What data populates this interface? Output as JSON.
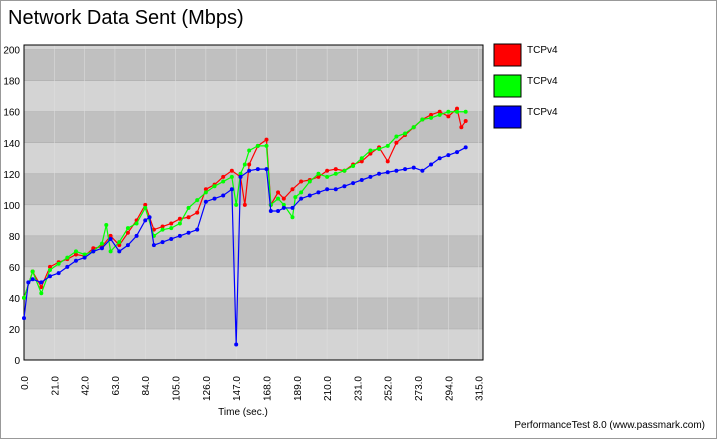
{
  "chart_data": {
    "type": "line",
    "title": "Network Data Sent (Mbps)",
    "x_label": "Time (sec.)",
    "footer": "PerformanceTest 8.0 (www.passmark.com)",
    "xlim": [
      0,
      318
    ],
    "ylim": [
      0,
      203
    ],
    "grid": true,
    "legend": "right",
    "xticks": [
      {
        "value": 0,
        "label": "0.0"
      },
      {
        "value": 21,
        "label": "21.0"
      },
      {
        "value": 42,
        "label": "42.0"
      },
      {
        "value": 63,
        "label": "63.0"
      },
      {
        "value": 84,
        "label": "84.0"
      },
      {
        "value": 105,
        "label": "105.0"
      },
      {
        "value": 126,
        "label": "126.0"
      },
      {
        "value": 147,
        "label": "147.0"
      },
      {
        "value": 168,
        "label": "168.0"
      },
      {
        "value": 189,
        "label": "189.0"
      },
      {
        "value": 210,
        "label": "210.0"
      },
      {
        "value": 231,
        "label": "231.0"
      },
      {
        "value": 252,
        "label": "252.0"
      },
      {
        "value": 273,
        "label": "273.0"
      },
      {
        "value": 294,
        "label": "294.0"
      },
      {
        "value": 315,
        "label": "315.0"
      }
    ],
    "yticks": [
      0,
      20,
      40,
      60,
      80,
      100,
      120,
      140,
      160,
      180,
      200
    ],
    "series": [
      {
        "name": "TCPv4",
        "color": "#ff0000",
        "x": [
          0,
          6,
          12,
          18,
          24,
          30,
          36,
          42,
          48,
          54,
          60,
          66,
          72,
          78,
          84,
          90,
          96,
          102,
          108,
          114,
          120,
          126,
          132,
          138,
          144,
          150,
          153,
          156,
          162,
          168,
          171,
          176,
          180,
          186,
          192,
          198,
          204,
          210,
          216,
          222,
          228,
          234,
          240,
          246,
          252,
          258,
          264,
          270,
          276,
          282,
          288,
          294,
          300,
          303,
          306
        ],
        "values": [
          40,
          57,
          47,
          60,
          63,
          65,
          68,
          67,
          72,
          73,
          80,
          74,
          82,
          90,
          100,
          84,
          86,
          88,
          91,
          92,
          95,
          110,
          113,
          118,
          122,
          118,
          100,
          126,
          138,
          142,
          100,
          108,
          104,
          110,
          115,
          116,
          118,
          122,
          123,
          122,
          126,
          128,
          133,
          137,
          128,
          140,
          145,
          150,
          155,
          158,
          160,
          157,
          162,
          150,
          154
        ]
      },
      {
        "name": "TCPv4",
        "color": "#00ff00",
        "x": [
          0,
          6,
          12,
          18,
          24,
          30,
          36,
          42,
          48,
          54,
          57,
          60,
          66,
          72,
          78,
          84,
          90,
          96,
          102,
          108,
          114,
          120,
          126,
          132,
          138,
          144,
          147,
          150,
          153,
          156,
          162,
          168,
          171,
          176,
          180,
          186,
          188,
          192,
          198,
          204,
          210,
          216,
          222,
          228,
          234,
          240,
          246,
          252,
          258,
          264,
          270,
          276,
          282,
          288,
          294,
          300,
          306
        ],
        "values": [
          40,
          57,
          43,
          58,
          62,
          66,
          70,
          68,
          70,
          75,
          87,
          70,
          76,
          85,
          88,
          98,
          80,
          84,
          85,
          88,
          98,
          103,
          108,
          112,
          115,
          118,
          100,
          120,
          126,
          135,
          138,
          138,
          100,
          104,
          100,
          92,
          105,
          108,
          115,
          120,
          118,
          120,
          122,
          125,
          130,
          135,
          136,
          138,
          144,
          146,
          150,
          155,
          156,
          158,
          160,
          160,
          160
        ]
      },
      {
        "name": "TCPv4",
        "color": "#0000ff",
        "x": [
          0,
          3,
          6,
          12,
          18,
          24,
          30,
          36,
          42,
          48,
          54,
          60,
          66,
          72,
          78,
          84,
          87,
          90,
          96,
          102,
          108,
          114,
          120,
          126,
          132,
          138,
          144,
          147,
          150,
          156,
          162,
          168,
          171,
          176,
          180,
          186,
          192,
          198,
          204,
          210,
          216,
          222,
          228,
          234,
          240,
          246,
          252,
          258,
          264,
          270,
          276,
          282,
          288,
          294,
          300,
          306
        ],
        "values": [
          27,
          50,
          52,
          50,
          54,
          56,
          60,
          64,
          66,
          70,
          72,
          78,
          70,
          74,
          80,
          90,
          92,
          74,
          76,
          78,
          80,
          82,
          84,
          102,
          104,
          106,
          110,
          10,
          118,
          122,
          123,
          123,
          96,
          96,
          98,
          98,
          104,
          106,
          108,
          110,
          110,
          112,
          114,
          116,
          118,
          120,
          121,
          122,
          123,
          124,
          122,
          126,
          130,
          132,
          134,
          137
        ]
      }
    ]
  }
}
